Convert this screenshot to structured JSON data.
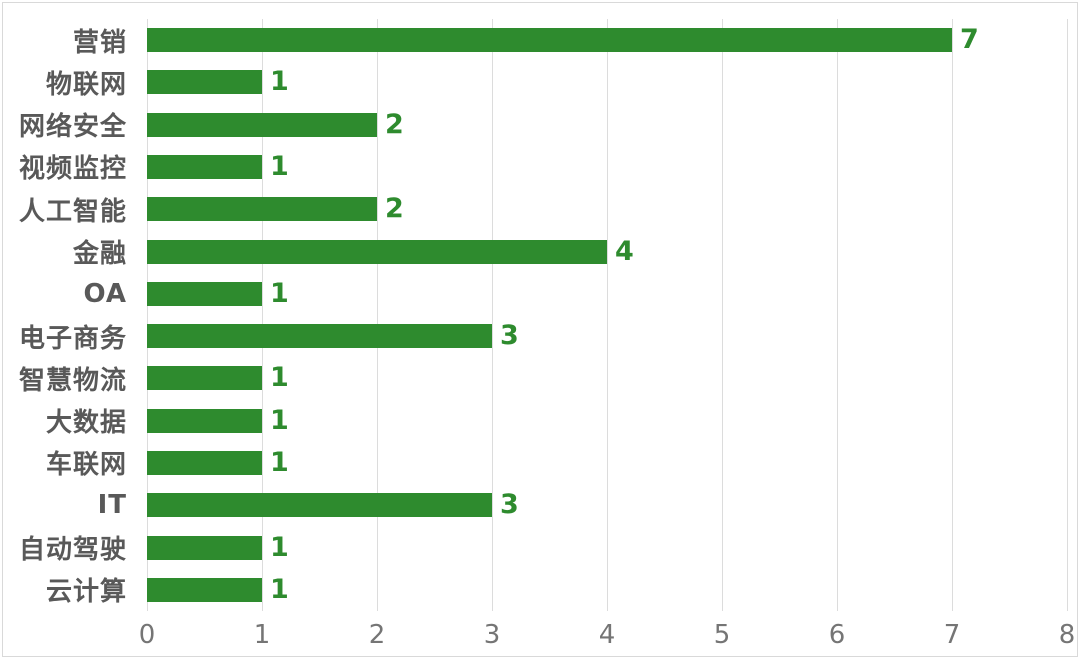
{
  "chart_data": {
    "type": "bar",
    "orientation": "horizontal",
    "title": "",
    "xlabel": "",
    "ylabel": "",
    "categories": [
      "营销",
      "物联网",
      "网络安全",
      "视频监控",
      "人工智能",
      "金融",
      "OA",
      "电子商务",
      "智慧物流",
      "大数据",
      "车联网",
      "IT",
      "自动驾驶",
      "云计算"
    ],
    "values": [
      7,
      1,
      2,
      1,
      2,
      4,
      1,
      3,
      1,
      1,
      1,
      3,
      1,
      1
    ],
    "data_labels": [
      "7",
      "1",
      "2",
      "1",
      "2",
      "4",
      "1",
      "3",
      "1",
      "1",
      "1",
      "3",
      "1",
      "1"
    ],
    "xlim": [
      0,
      8
    ],
    "x_tick_labels": [
      "0",
      "1",
      "2",
      "3",
      "4",
      "5",
      "6",
      "7",
      "8"
    ],
    "grid": "vertical",
    "legend": "none",
    "colors": {
      "bar": "#2e8b2e",
      "value_label": "#2e8b2e",
      "category_label": "#595959",
      "tick_label": "#757575",
      "gridline": "#dcdcdc",
      "frame_border": "#d9d9d9",
      "background": "#ffffff"
    }
  }
}
